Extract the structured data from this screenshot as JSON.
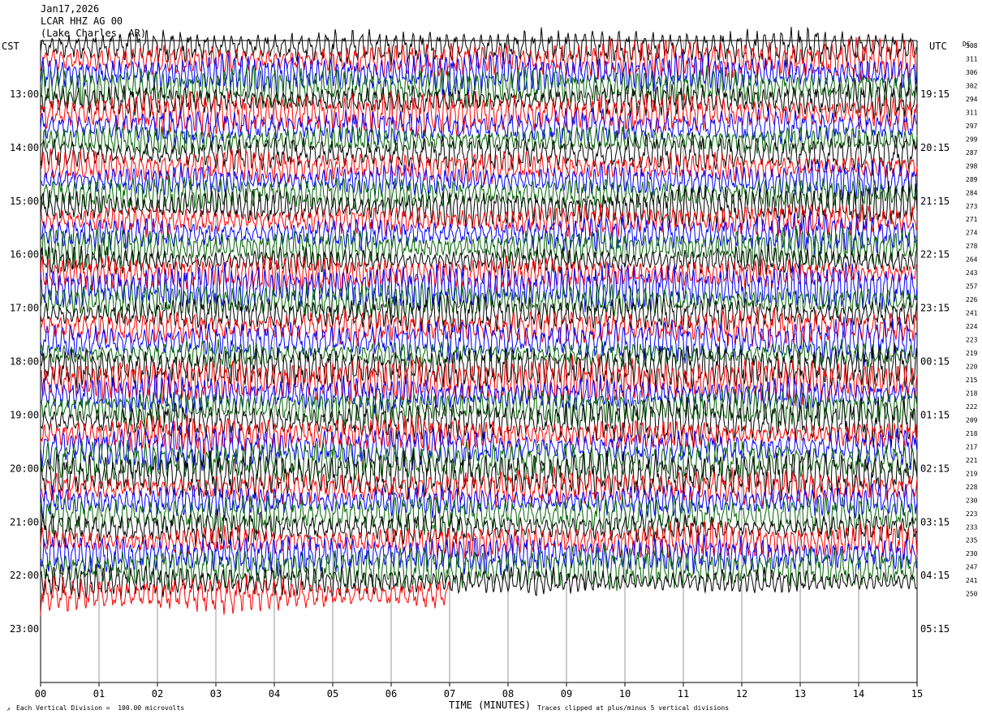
{
  "header": {
    "date": "Jan17,2026",
    "station": "LCAR HHZ AG 00",
    "location": "(Lake Charles, AR)"
  },
  "left_timezone": "CST",
  "right_timezone": "UTC",
  "dc_label": "DC",
  "footer": {
    "scale_note": "Each Vertical Division =  100.00 microvolts",
    "clip_note": "Traces clipped at plus/minus 5 vertical divisions",
    "mark": "↗"
  },
  "chart_data": {
    "type": "line",
    "xlabel": "TIME (MINUTES)",
    "xlim": [
      0,
      15
    ],
    "x_ticks": [
      "00",
      "01",
      "02",
      "03",
      "04",
      "05",
      "06",
      "07",
      "08",
      "09",
      "10",
      "11",
      "12",
      "13",
      "14",
      "15"
    ],
    "trace_colors": [
      "#000000",
      "#ff0000",
      "#0000ff",
      "#006400"
    ],
    "left_hour_labels": [
      "13:00",
      "14:00",
      "15:00",
      "16:00",
      "17:00",
      "18:00",
      "19:00",
      "20:00",
      "21:00",
      "22:00",
      "23:00"
    ],
    "right_hour_labels": [
      "19:15",
      "20:15",
      "21:15",
      "22:15",
      "23:15",
      "00:15",
      "01:15",
      "02:15",
      "03:15",
      "04:15",
      "05:15"
    ],
    "dc_offsets": [
      "308",
      "311",
      "306",
      "302",
      "294",
      "311",
      "297",
      "299",
      "287",
      "298",
      "289",
      "284",
      "273",
      "271",
      "274",
      "278",
      "264",
      "243",
      "257",
      "226",
      "241",
      "224",
      "223",
      "219",
      "220",
      "215",
      "218",
      "222",
      "209",
      "218",
      "217",
      "221",
      "219",
      "228",
      "230",
      "223",
      "233",
      "235",
      "230",
      "247",
      "241",
      "250"
    ],
    "rows_total": 48,
    "rows_per_hour": 4,
    "last_row_partial_minutes": 7
  }
}
